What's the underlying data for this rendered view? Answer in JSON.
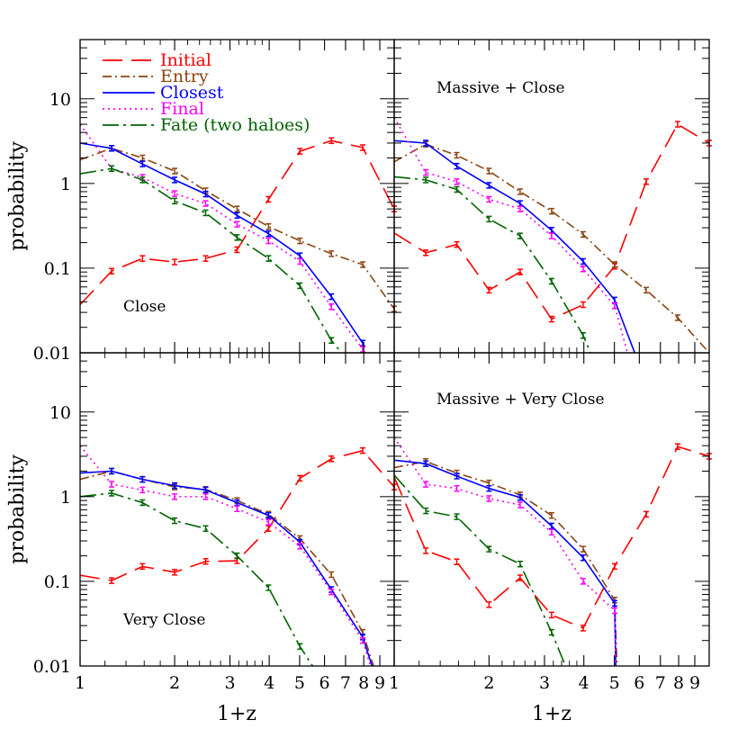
{
  "chart_data": {
    "type": "line",
    "layout": "2x2 grid of panels sharing axes",
    "xlabel": "1+z",
    "ylabel": "probability",
    "x_scale": "log",
    "y_scale": "log",
    "xlim": [
      1,
      10
    ],
    "ylim": [
      0.01,
      50
    ],
    "x_ticks": [
      1,
      2,
      3,
      4,
      5,
      6,
      7,
      8,
      9
    ],
    "x_tick_labels_left": [
      "1",
      "2",
      "3",
      "4",
      "5",
      "6",
      "7",
      "8",
      "9"
    ],
    "x_tick_labels_right": [
      "1",
      "2",
      "3",
      "4",
      "5",
      "6",
      "7",
      "8",
      "9"
    ],
    "y_ticks": [
      0.01,
      0.1,
      1,
      10
    ],
    "y_tick_labels": [
      "0.01",
      "0.1",
      "1",
      "10"
    ],
    "legend": {
      "placement": "top-left of first panel",
      "entries": [
        {
          "label": "Initial",
          "color": "#ff0000",
          "dash": "long-dash"
        },
        {
          "label": "Entry",
          "color": "#8b4513",
          "dash": "dash-dot"
        },
        {
          "label": "Closest",
          "color": "#0000ff",
          "dash": "solid"
        },
        {
          "label": "Final",
          "color": "#ff00ff",
          "dash": "dotted"
        },
        {
          "label": "Fate (two haloes)",
          "color": "#006400",
          "dash": "long-dash-dot"
        }
      ]
    },
    "panels": [
      {
        "label": "Close",
        "series": [
          {
            "name": "Initial",
            "x": [
              1.0,
              1.26,
              1.58,
              2.0,
              2.51,
              3.16,
              3.98,
              5.01,
              6.31,
              7.94,
              10.0
            ],
            "y": [
              0.037,
              0.092,
              0.13,
              0.118,
              0.13,
              0.165,
              0.65,
              2.4,
              3.2,
              2.65,
              0.5
            ]
          },
          {
            "name": "Entry",
            "x": [
              1.0,
              1.26,
              1.58,
              2.0,
              2.51,
              3.16,
              3.98,
              5.01,
              6.31,
              7.94,
              10.0
            ],
            "y": [
              1.9,
              2.6,
              2.0,
              1.4,
              0.82,
              0.5,
              0.31,
              0.21,
              0.148,
              0.11,
              0.033
            ]
          },
          {
            "name": "Closest",
            "x": [
              1.0,
              1.26,
              1.58,
              2.0,
              2.51,
              3.16,
              3.98,
              5.01,
              6.31,
              7.94
            ],
            "y": [
              3.0,
              2.6,
              1.7,
              1.1,
              0.75,
              0.42,
              0.255,
              0.14,
              0.046,
              0.013
            ]
          },
          {
            "name": "Final",
            "x": [
              1.0,
              1.26,
              1.58,
              2.0,
              2.51,
              3.16,
              3.98,
              5.01,
              6.31,
              7.94
            ],
            "y": [
              5.0,
              1.5,
              1.18,
              0.76,
              0.58,
              0.33,
              0.21,
              0.12,
              0.035,
              0.011
            ]
          },
          {
            "name": "Fate (two haloes)",
            "x": [
              1.0,
              1.26,
              1.58,
              2.0,
              2.51,
              3.16,
              3.98,
              5.01,
              6.31,
              6.8
            ],
            "y": [
              1.3,
              1.5,
              1.1,
              0.62,
              0.45,
              0.23,
              0.13,
              0.062,
              0.014,
              0.01
            ]
          }
        ]
      },
      {
        "label": "Massive + Close",
        "series": [
          {
            "name": "Initial",
            "x": [
              1.0,
              1.26,
              1.58,
              2.0,
              2.51,
              3.16,
              3.98,
              5.01,
              6.31,
              7.94,
              10.0
            ],
            "y": [
              0.26,
              0.152,
              0.19,
              0.055,
              0.09,
              0.025,
              0.037,
              0.105,
              1.05,
              5.0,
              3.0
            ]
          },
          {
            "name": "Entry",
            "x": [
              1.0,
              1.26,
              1.58,
              2.0,
              2.51,
              3.16,
              3.98,
              5.01,
              6.31,
              7.94,
              10.0
            ],
            "y": [
              1.8,
              2.9,
              2.15,
              1.4,
              0.8,
              0.47,
              0.25,
              0.11,
              0.055,
              0.026,
              0.01
            ]
          },
          {
            "name": "Closest",
            "x": [
              1.0,
              1.26,
              1.58,
              2.0,
              2.51,
              3.16,
              3.98,
              5.01,
              5.8
            ],
            "y": [
              3.2,
              3.0,
              1.6,
              0.95,
              0.58,
              0.28,
              0.12,
              0.042,
              0.01
            ]
          },
          {
            "name": "Final",
            "x": [
              1.0,
              1.26,
              1.58,
              2.0,
              2.51,
              3.16,
              3.98,
              5.01,
              5.5
            ],
            "y": [
              6.0,
              1.35,
              1.05,
              0.65,
              0.5,
              0.24,
              0.098,
              0.036,
              0.01
            ]
          },
          {
            "name": "Fate (two haloes)",
            "x": [
              1.0,
              1.26,
              1.58,
              2.0,
              2.51,
              3.16,
              3.98,
              4.2
            ],
            "y": [
              1.2,
              1.1,
              0.85,
              0.38,
              0.24,
              0.07,
              0.016,
              0.01
            ]
          }
        ]
      },
      {
        "label": "Very Close",
        "series": [
          {
            "name": "Initial",
            "x": [
              1.0,
              1.26,
              1.58,
              2.0,
              2.51,
              3.16,
              3.98,
              5.01,
              6.31,
              7.94,
              10.0
            ],
            "y": [
              0.118,
              0.102,
              0.15,
              0.128,
              0.172,
              0.175,
              0.42,
              1.65,
              2.8,
              3.5,
              1.3
            ]
          },
          {
            "name": "Entry",
            "x": [
              1.0,
              1.26,
              1.58,
              2.0,
              2.51,
              3.16,
              3.98,
              5.01,
              6.31,
              7.94,
              8.6
            ],
            "y": [
              1.6,
              2.0,
              1.6,
              1.3,
              1.22,
              0.9,
              0.62,
              0.32,
              0.12,
              0.025,
              0.01
            ]
          },
          {
            "name": "Closest",
            "x": [
              1.0,
              1.26,
              1.58,
              2.0,
              2.51,
              3.16,
              3.98,
              5.01,
              6.31,
              7.94,
              8.5
            ],
            "y": [
              1.9,
              2.0,
              1.6,
              1.35,
              1.2,
              0.85,
              0.6,
              0.29,
              0.08,
              0.022,
              0.01
            ]
          },
          {
            "name": "Final",
            "x": [
              1.0,
              1.26,
              1.58,
              2.0,
              2.51,
              3.16,
              3.98,
              5.01,
              6.31,
              7.94,
              8.4
            ],
            "y": [
              4.0,
              1.4,
              1.2,
              1.0,
              1.0,
              0.72,
              0.5,
              0.26,
              0.075,
              0.02,
              0.01
            ]
          },
          {
            "name": "Fate (two haloes)",
            "x": [
              1.0,
              1.26,
              1.58,
              2.0,
              2.51,
              3.16,
              3.98,
              5.01,
              5.5
            ],
            "y": [
              1.0,
              1.1,
              0.85,
              0.52,
              0.42,
              0.2,
              0.084,
              0.017,
              0.01
            ]
          }
        ]
      },
      {
        "label": "Massive + Very Close",
        "series": [
          {
            "name": "Initial",
            "x": [
              1.0,
              1.26,
              1.58,
              2.0,
              2.51,
              3.16,
              3.98,
              5.01,
              6.31,
              7.94,
              10.0
            ],
            "y": [
              1.7,
              0.23,
              0.17,
              0.053,
              0.11,
              0.04,
              0.028,
              0.15,
              0.62,
              3.9,
              3.0
            ]
          },
          {
            "name": "Entry",
            "x": [
              1.0,
              1.26,
              1.58,
              2.0,
              2.51,
              3.16,
              3.98,
              5.01,
              5.1
            ],
            "y": [
              2.2,
              2.6,
              1.9,
              1.45,
              1.05,
              0.6,
              0.24,
              0.06,
              0.01
            ]
          },
          {
            "name": "Closest",
            "x": [
              1.0,
              1.26,
              1.58,
              2.0,
              2.51,
              3.16,
              3.98,
              5.01,
              5.05
            ],
            "y": [
              2.7,
              2.45,
              1.75,
              1.25,
              0.98,
              0.45,
              0.19,
              0.055,
              0.01
            ]
          },
          {
            "name": "Final",
            "x": [
              1.0,
              1.26,
              1.58,
              2.0,
              2.51,
              3.16,
              3.98,
              5.01,
              5.05
            ],
            "y": [
              5.0,
              1.4,
              1.25,
              0.95,
              0.8,
              0.38,
              0.1,
              0.045,
              0.01
            ]
          },
          {
            "name": "Fate (two haloes)",
            "x": [
              1.0,
              1.26,
              1.58,
              2.0,
              2.51,
              3.16,
              3.5
            ],
            "y": [
              1.8,
              0.68,
              0.58,
              0.24,
              0.16,
              0.025,
              0.01
            ]
          }
        ]
      }
    ]
  }
}
